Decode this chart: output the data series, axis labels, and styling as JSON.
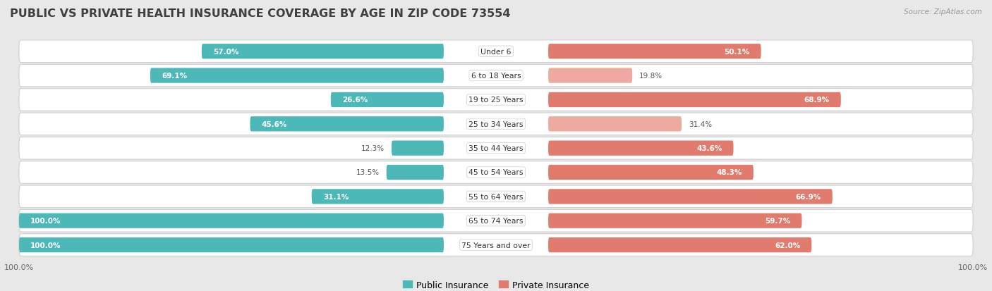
{
  "title": "PUBLIC VS PRIVATE HEALTH INSURANCE COVERAGE BY AGE IN ZIP CODE 73554",
  "source": "Source: ZipAtlas.com",
  "categories": [
    "Under 6",
    "6 to 18 Years",
    "19 to 25 Years",
    "25 to 34 Years",
    "35 to 44 Years",
    "45 to 54 Years",
    "55 to 64 Years",
    "65 to 74 Years",
    "75 Years and over"
  ],
  "public_values": [
    57.0,
    69.1,
    26.6,
    45.6,
    12.3,
    13.5,
    31.1,
    100.0,
    100.0
  ],
  "private_values": [
    50.1,
    19.8,
    68.9,
    31.4,
    43.6,
    48.3,
    66.9,
    59.7,
    62.0
  ],
  "public_color": "#4db8b8",
  "private_color_high": "#e07b6e",
  "private_color_low": "#eeaaa0",
  "private_threshold": 40,
  "bg_color": "#e8e8e8",
  "row_bg_color": "#f5f5f5",
  "row_border_color": "#d0d0d0",
  "title_color": "#404040",
  "source_color": "#999999",
  "white": "#ffffff",
  "dark_label": "#555555",
  "x_max": 100.0,
  "legend_public": "Public Insurance",
  "legend_private": "Private Insurance",
  "pub_label_threshold": 20,
  "priv_label_threshold": 40
}
